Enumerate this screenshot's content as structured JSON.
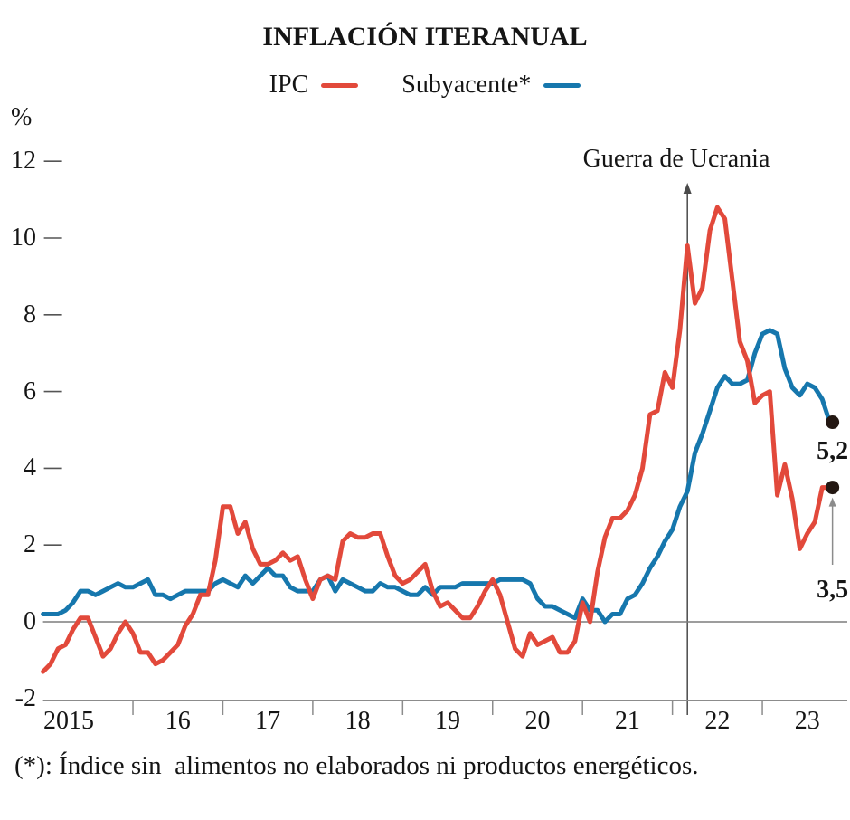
{
  "header": {
    "title": "INFLACIÓN ITERANUAL",
    "unit_label": "%"
  },
  "legend": [
    {
      "label": "IPC",
      "color": "#e2493b"
    },
    {
      "label": "Subyacente*",
      "color": "#1677ad"
    }
  ],
  "annotations": {
    "event_label": "Guerra de Ucrania",
    "ipc_end_label": "3,5",
    "subyacente_end_label": "5,2"
  },
  "footnote": "(*): Índice sin  alimentos no elaborados ni productos energéticos.",
  "colors": {
    "ipc": "#e2493b",
    "subyacente": "#1677ad",
    "axis": "#8c8c8c",
    "zero_line": "#7d7d7d",
    "tick_dash": "#555555",
    "event_line": "#4a4a4a",
    "end_dot": "#231712",
    "small_arrow": "#8c8c8c"
  },
  "chart_data": {
    "type": "line",
    "title": "INFLACIÓN ITERANUAL",
    "ylabel": "%",
    "ylim": [
      -2,
      12
    ],
    "yticks": [
      12,
      10,
      8,
      6,
      4,
      2,
      0,
      -2
    ],
    "xticks": [
      "2015",
      "16",
      "17",
      "18",
      "19",
      "20",
      "21",
      "22",
      "23"
    ],
    "x_start": "2015-01",
    "x_end": "2023-10",
    "x_unit": "month",
    "grid": false,
    "legend_position": "top",
    "event_line": {
      "label": "Guerra de Ucrania",
      "x": "2022-03"
    },
    "series": [
      {
        "name": "Subyacente*",
        "color": "#1677ad",
        "end_label": "5,2",
        "end_value": 5.2,
        "values": [
          0.2,
          0.2,
          0.2,
          0.3,
          0.5,
          0.8,
          0.8,
          0.7,
          0.8,
          0.9,
          1.0,
          0.9,
          0.9,
          1.0,
          1.1,
          0.7,
          0.7,
          0.6,
          0.7,
          0.8,
          0.8,
          0.8,
          0.8,
          1.0,
          1.1,
          1.0,
          0.9,
          1.2,
          1.0,
          1.2,
          1.4,
          1.2,
          1.2,
          0.9,
          0.8,
          0.8,
          0.8,
          1.1,
          1.2,
          0.8,
          1.1,
          1.0,
          0.9,
          0.8,
          0.8,
          1.0,
          0.9,
          0.9,
          0.8,
          0.7,
          0.7,
          0.9,
          0.7,
          0.9,
          0.9,
          0.9,
          1.0,
          1.0,
          1.0,
          1.0,
          1.0,
          1.1,
          1.1,
          1.1,
          1.1,
          1.0,
          0.6,
          0.4,
          0.4,
          0.3,
          0.2,
          0.1,
          0.6,
          0.3,
          0.3,
          0.0,
          0.2,
          0.2,
          0.6,
          0.7,
          1.0,
          1.4,
          1.7,
          2.1,
          2.4,
          3.0,
          3.4,
          4.4,
          4.9,
          5.5,
          6.1,
          6.4,
          6.2,
          6.2,
          6.3,
          7.0,
          7.5,
          7.6,
          7.5,
          6.6,
          6.1,
          5.9,
          6.2,
          6.1,
          5.8,
          5.2
        ]
      },
      {
        "name": "IPC",
        "color": "#e2493b",
        "end_label": "3,5",
        "end_value": 3.5,
        "values": [
          -1.3,
          -1.1,
          -0.7,
          -0.6,
          -0.2,
          0.1,
          0.1,
          -0.4,
          -0.9,
          -0.7,
          -0.3,
          0.0,
          -0.3,
          -0.8,
          -0.8,
          -1.1,
          -1.0,
          -0.8,
          -0.6,
          -0.1,
          0.2,
          0.7,
          0.7,
          1.6,
          3.0,
          3.0,
          2.3,
          2.6,
          1.9,
          1.5,
          1.5,
          1.6,
          1.8,
          1.6,
          1.7,
          1.1,
          0.6,
          1.1,
          1.2,
          1.1,
          2.1,
          2.3,
          2.2,
          2.2,
          2.3,
          2.3,
          1.7,
          1.2,
          1.0,
          1.1,
          1.3,
          1.5,
          0.8,
          0.4,
          0.5,
          0.3,
          0.1,
          0.1,
          0.4,
          0.8,
          1.1,
          0.7,
          0.0,
          -0.7,
          -0.9,
          -0.3,
          -0.6,
          -0.5,
          -0.4,
          -0.8,
          -0.8,
          -0.5,
          0.5,
          0.0,
          1.3,
          2.2,
          2.7,
          2.7,
          2.9,
          3.3,
          4.0,
          5.4,
          5.5,
          6.5,
          6.1,
          7.6,
          9.8,
          8.3,
          8.7,
          10.2,
          10.8,
          10.5,
          8.9,
          7.3,
          6.8,
          5.7,
          5.9,
          6.0,
          3.3,
          4.1,
          3.2,
          1.9,
          2.3,
          2.6,
          3.5,
          3.5
        ]
      }
    ]
  }
}
